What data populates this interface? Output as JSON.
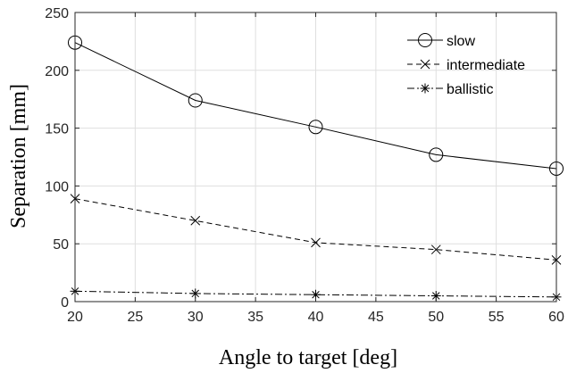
{
  "chart_data": {
    "type": "line",
    "xlabel": "Angle to target [deg]",
    "ylabel": "Separation [mm]",
    "xlim": [
      20,
      60
    ],
    "ylim": [
      0,
      250
    ],
    "xticks": [
      20,
      25,
      30,
      35,
      40,
      45,
      50,
      55,
      60
    ],
    "yticks": [
      0,
      50,
      100,
      150,
      200,
      250
    ],
    "x": [
      20,
      30,
      40,
      50,
      60
    ],
    "grid": true,
    "legend_position": "top-right",
    "series": [
      {
        "name": "slow",
        "values": [
          224,
          174,
          151,
          127,
          115
        ],
        "line_style": "solid",
        "marker": "circle",
        "color": "#000000"
      },
      {
        "name": "intermediate",
        "values": [
          89,
          70,
          51,
          45,
          36
        ],
        "line_style": "dashed",
        "marker": "x",
        "color": "#000000"
      },
      {
        "name": "ballistic",
        "values": [
          9,
          7,
          6,
          5,
          4
        ],
        "line_style": "dash-dot",
        "marker": "asterisk",
        "color": "#000000"
      }
    ]
  }
}
